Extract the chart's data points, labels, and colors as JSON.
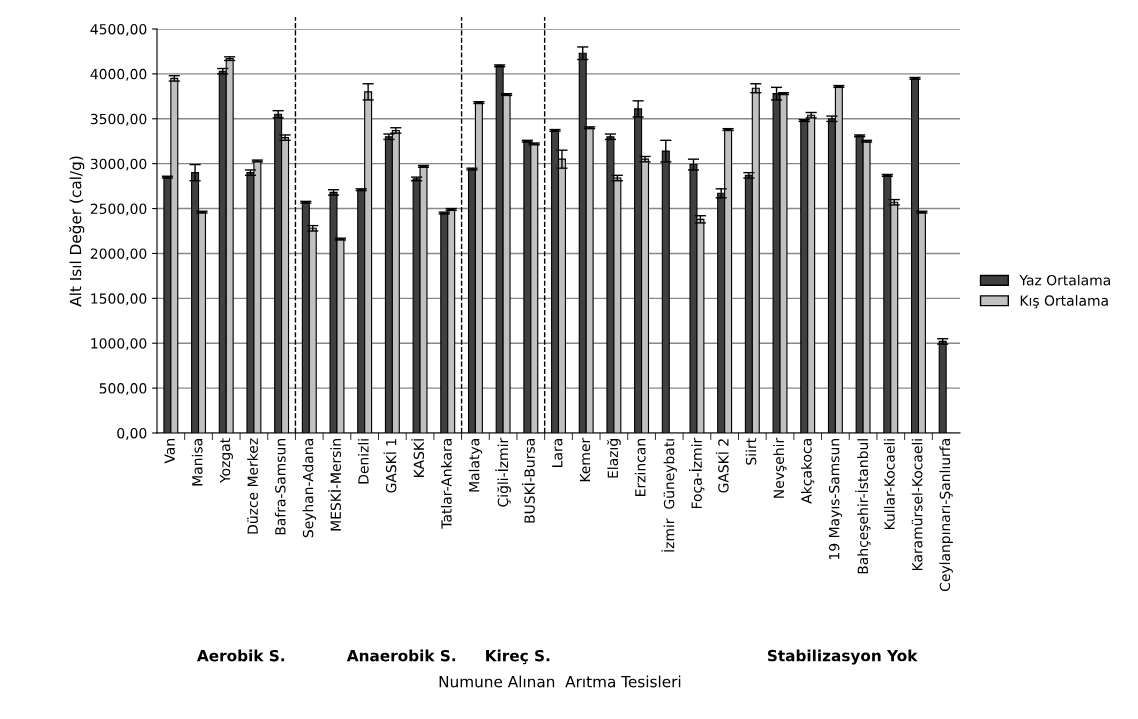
{
  "chart_data": {
    "type": "bar",
    "ylabel": "Alt Isıl Değer (cal/g)",
    "categories": [
      "Van",
      "Manisa",
      "Yozgat",
      "Düzce Merkez",
      "Bafra-Samsun",
      "Seyhan-Adana",
      "MESKİ-Mersin",
      "Denizli",
      "GASKİ 1",
      "KASKİ",
      "Tatlar-Ankara",
      "Malatya",
      "Çiğli-İzmir",
      "BUSKİ-Bursa",
      "Lara",
      "Kemer",
      "Elazığ",
      "Erzincan",
      "İzmir  Güneybatı",
      "Foça-İzmir",
      "GASKİ 2",
      "Siirt",
      "Nevşehir",
      "Akçakoca",
      "19 Mayıs-Samsun",
      "Bahçeşehir-İstanbul",
      "Kullar-Kocaeli",
      "Karamürsel-Kocaeli",
      "Ceylanpınarı-Şanlıurfa"
    ],
    "series": [
      {
        "name": "Yaz Ortalama",
        "color": "#404040",
        "values": [
          2850,
          2900,
          4030,
          2900,
          3550,
          2570,
          2680,
          2710,
          3300,
          2830,
          2450,
          2940,
          4090,
          3250,
          3370,
          4230,
          3300,
          3610,
          3140,
          2990,
          2670,
          2870,
          3780,
          3480,
          3500,
          3310,
          2870,
          3950,
          1020
        ],
        "errors": [
          10,
          90,
          30,
          30,
          40,
          10,
          30,
          10,
          30,
          20,
          10,
          10,
          10,
          10,
          10,
          70,
          30,
          90,
          120,
          60,
          50,
          30,
          70,
          10,
          30,
          10,
          10,
          10,
          30
        ]
      },
      {
        "name": "Kış Ortalama",
        "color": "#c0c0c0",
        "values": [
          3950,
          2460,
          4170,
          3030,
          3290,
          2280,
          2160,
          3800,
          3370,
          2970,
          2490,
          3680,
          3770,
          3220,
          3050,
          3400,
          2840,
          3050,
          null,
          2380,
          3380,
          3840,
          3780,
          3540,
          3860,
          3250,
          2570,
          2460,
          null
        ],
        "errors": [
          30,
          10,
          20,
          10,
          30,
          30,
          10,
          90,
          30,
          10,
          10,
          10,
          10,
          10,
          100,
          10,
          30,
          30,
          null,
          40,
          10,
          50,
          10,
          30,
          10,
          10,
          30,
          10,
          null
        ]
      }
    ],
    "ylim": [
      0,
      4500
    ],
    "yticks": [
      {
        "value": 0,
        "label": "0,00"
      },
      {
        "value": 500,
        "label": "500,00"
      },
      {
        "value": 1000,
        "label": "1000,00"
      },
      {
        "value": 1500,
        "label": "1500,00"
      },
      {
        "value": 2000,
        "label": "2000,00"
      },
      {
        "value": 2500,
        "label": "2500,00"
      },
      {
        "value": 3000,
        "label": "3000,00"
      },
      {
        "value": 3500,
        "label": "3500,00"
      },
      {
        "value": 4000,
        "label": "4000,00"
      },
      {
        "value": 4500,
        "label": "4500,00"
      }
    ],
    "annotations": [
      "Aerobik S.",
      "Anaerobik S.",
      "Kireç S.",
      "Stabilizasyon Yok",
      "Numune Alınan  Arıtma Tesisleri"
    ],
    "grid": "y",
    "legend": "right"
  }
}
